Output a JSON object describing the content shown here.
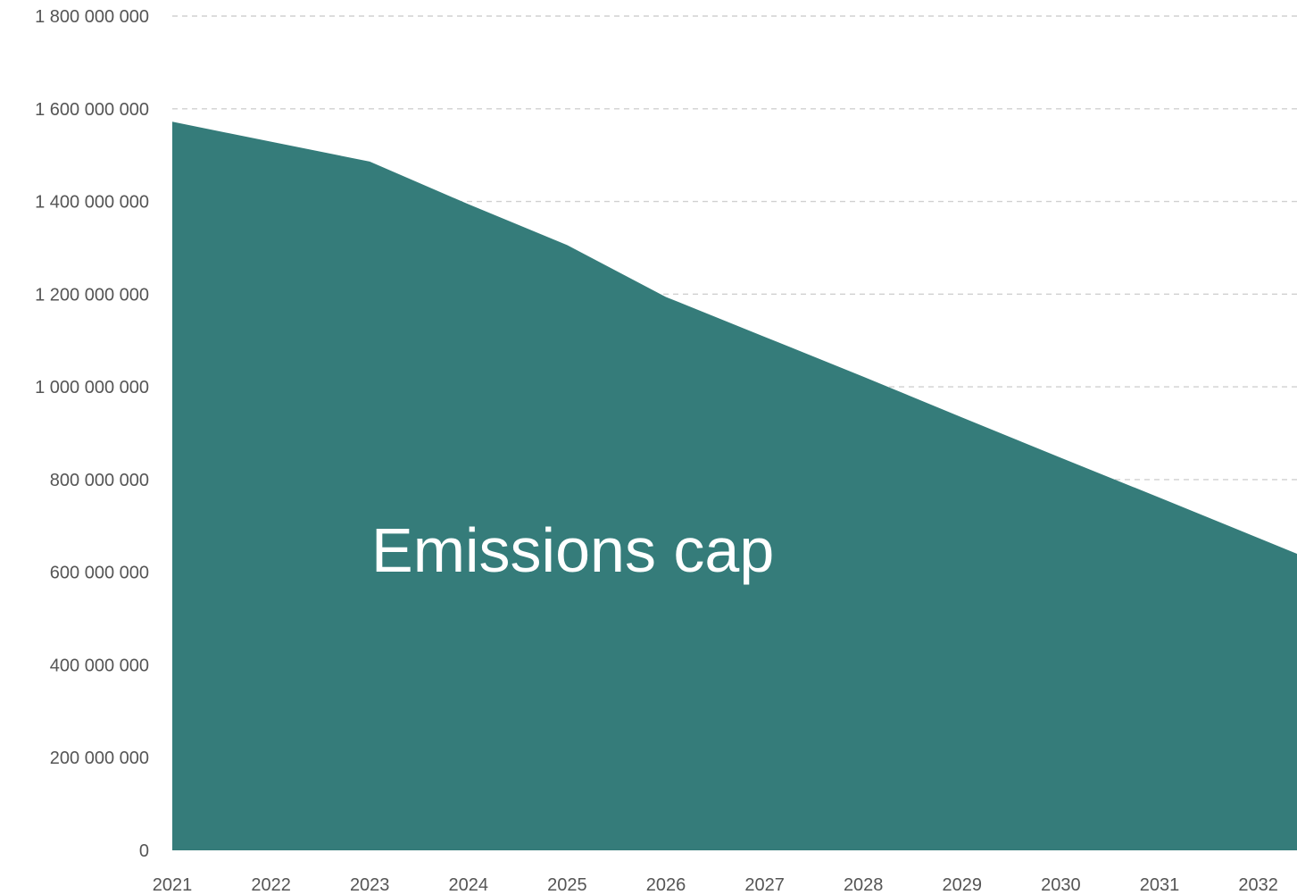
{
  "chart_data": {
    "type": "area",
    "x": [
      "2021",
      "2022",
      "2023",
      "2024",
      "2025",
      "2026",
      "2027",
      "2028",
      "2029",
      "2030",
      "2031",
      "2032"
    ],
    "series": [
      {
        "values": [
          1572000000,
          1529000000,
          1486000000,
          1394000000,
          1306000000,
          1194000000,
          1108000000,
          1022000000,
          934000000,
          847000000,
          761000000,
          674000000
        ]
      }
    ],
    "area_label": "Emissions cap",
    "yticks": [
      {
        "value": 0,
        "label": "0"
      },
      {
        "value": 200000000,
        "label": "200 000 000"
      },
      {
        "value": 400000000,
        "label": "400 000 000"
      },
      {
        "value": 600000000,
        "label": "600 000 000"
      },
      {
        "value": 800000000,
        "label": "800 000 000"
      },
      {
        "value": 1000000000,
        "label": "1 000 000 000"
      },
      {
        "value": 1200000000,
        "label": "1 200 000 000"
      },
      {
        "value": 1400000000,
        "label": "1 400 000 000"
      },
      {
        "value": 1600000000,
        "label": "1 600 000 000"
      },
      {
        "value": 1800000000,
        "label": "1 800 000 000"
      }
    ],
    "ylim": [
      0,
      1800000000
    ],
    "grid": true,
    "grid_style": "dashed",
    "colors": {
      "area": "#357c7a",
      "grid": "#d0d0d0",
      "tick_text": "#555555",
      "area_label": "#ffffff"
    }
  }
}
